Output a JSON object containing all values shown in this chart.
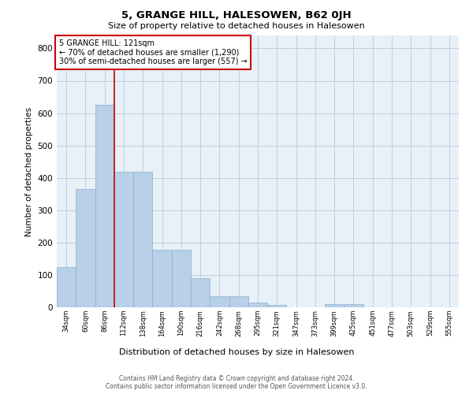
{
  "title": "5, GRANGE HILL, HALESOWEN, B62 0JH",
  "subtitle": "Size of property relative to detached houses in Halesowen",
  "xlabel": "Distribution of detached houses by size in Halesowen",
  "ylabel": "Number of detached properties",
  "bar_values": [
    125,
    365,
    625,
    418,
    418,
    178,
    178,
    90,
    35,
    35,
    14,
    7,
    0,
    0,
    10,
    10,
    0,
    0,
    0,
    0,
    0
  ],
  "bar_labels": [
    "34sqm",
    "60sqm",
    "86sqm",
    "112sqm",
    "138sqm",
    "164sqm",
    "190sqm",
    "216sqm",
    "242sqm",
    "268sqm",
    "295sqm",
    "321sqm",
    "347sqm",
    "373sqm",
    "399sqm",
    "425sqm",
    "451sqm",
    "477sqm",
    "503sqm",
    "529sqm",
    "555sqm"
  ],
  "bar_color": "#b8d0e8",
  "bar_edge_color": "#8ab0cc",
  "red_line_x": 2.5,
  "marker_label": "5 GRANGE HILL: 121sqm",
  "annotation_line1": "← 70% of detached houses are smaller (1,290)",
  "annotation_line2": "30% of semi-detached houses are larger (557) →",
  "ylim": [
    0,
    840
  ],
  "yticks": [
    0,
    100,
    200,
    300,
    400,
    500,
    600,
    700,
    800
  ],
  "red_line_color": "#cc0000",
  "annotation_box_color": "#ffffff",
  "annotation_box_edge_color": "#cc0000",
  "grid_color": "#c0d0e0",
  "bg_color": "#e8f0f8",
  "footer_line1": "Contains HM Land Registry data © Crown copyright and database right 2024.",
  "footer_line2": "Contains public sector information licensed under the Open Government Licence v3.0."
}
